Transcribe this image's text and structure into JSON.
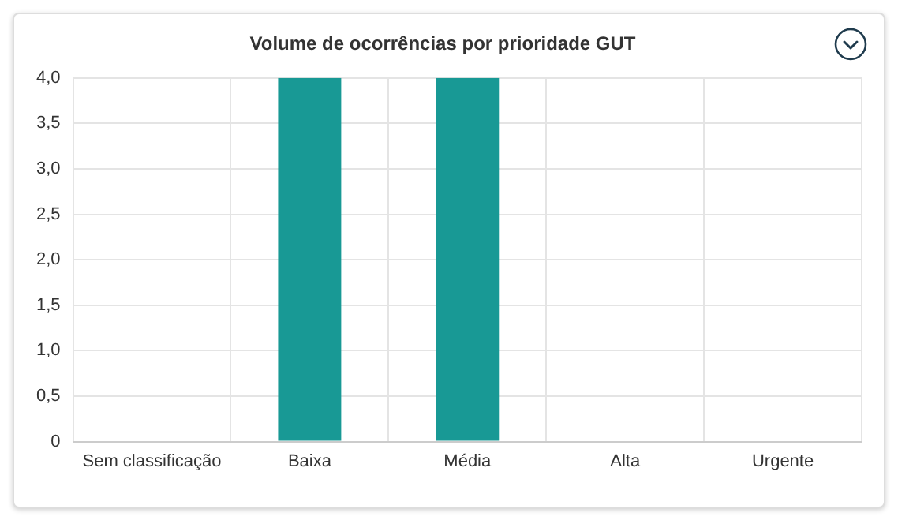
{
  "chart_data": {
    "type": "bar",
    "title": "Volume de ocorrências por prioridade GUT",
    "categories": [
      "Sem classificação",
      "Baixa",
      "Média",
      "Alta",
      "Urgente"
    ],
    "values": [
      0,
      4,
      4,
      0,
      0
    ],
    "color": "#189995",
    "ylim": [
      0,
      4
    ],
    "yticks": [
      0,
      {
        "value": 0.5,
        "label": "0,5"
      },
      {
        "value": 1,
        "label": "1,0"
      },
      {
        "value": 1.5,
        "label": "1,5"
      },
      {
        "value": 2,
        "label": "2,0"
      },
      {
        "value": 2.5,
        "label": "2,5"
      },
      {
        "value": 3,
        "label": "3,0"
      },
      {
        "value": 3.5,
        "label": "3,5"
      },
      {
        "value": 4,
        "label": "4,0"
      }
    ],
    "grid": true,
    "legend": false
  }
}
